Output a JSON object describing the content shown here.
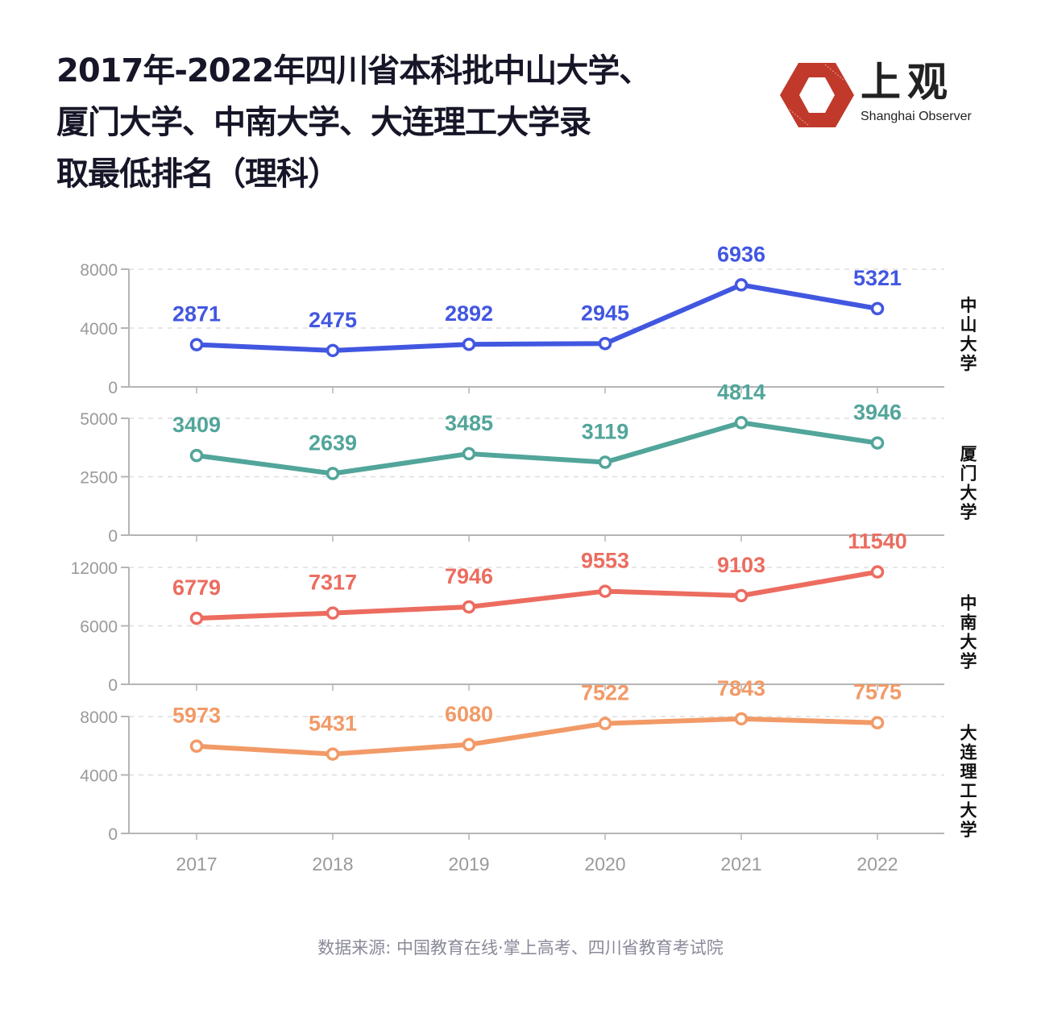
{
  "title_lines": [
    "2017年-2022年四川省本科批中山大学、",
    "厦门大学、中南大学、大连理工大学录",
    "取最低排名（理科）"
  ],
  "logo": {
    "icon": "hexagon-logo-icon",
    "name_cn": "上观",
    "name_en": "Shanghai Observer",
    "color": "#c0392b"
  },
  "source": "数据来源: 中国教育在线·掌上高考、四川省教育考试院",
  "chart_data": {
    "type": "line",
    "title": "2017年-2022年四川省本科批中山大学、厦门大学、中南大学、大连理工大学录取最低排名（理科）",
    "xlabel": "",
    "ylabel": "",
    "categories": [
      "2017",
      "2018",
      "2019",
      "2020",
      "2021",
      "2022"
    ],
    "grid": true,
    "layout": "small-multiples-stacked",
    "series": [
      {
        "name": "中山大学",
        "color": "#4257e0",
        "values": [
          2871,
          2475,
          2892,
          2945,
          6936,
          5321
        ],
        "ylim": [
          0,
          8000
        ],
        "yticks": [
          0,
          4000,
          8000
        ]
      },
      {
        "name": "厦门大学",
        "color": "#52a59a",
        "values": [
          3409,
          2639,
          3485,
          3119,
          4814,
          3946
        ],
        "ylim": [
          0,
          5000
        ],
        "yticks": [
          0,
          2500,
          5000
        ]
      },
      {
        "name": "中南大学",
        "color": "#ec6c60",
        "values": [
          6779,
          7317,
          7946,
          9553,
          9103,
          11540
        ],
        "ylim": [
          0,
          12000
        ],
        "yticks": [
          0,
          6000,
          12000
        ]
      },
      {
        "name": "大连理工大学",
        "color": "#f29a67",
        "values": [
          5973,
          5431,
          6080,
          7522,
          7843,
          7575
        ],
        "ylim": [
          0,
          8000
        ],
        "yticks": [
          0,
          4000,
          8000
        ]
      }
    ]
  }
}
